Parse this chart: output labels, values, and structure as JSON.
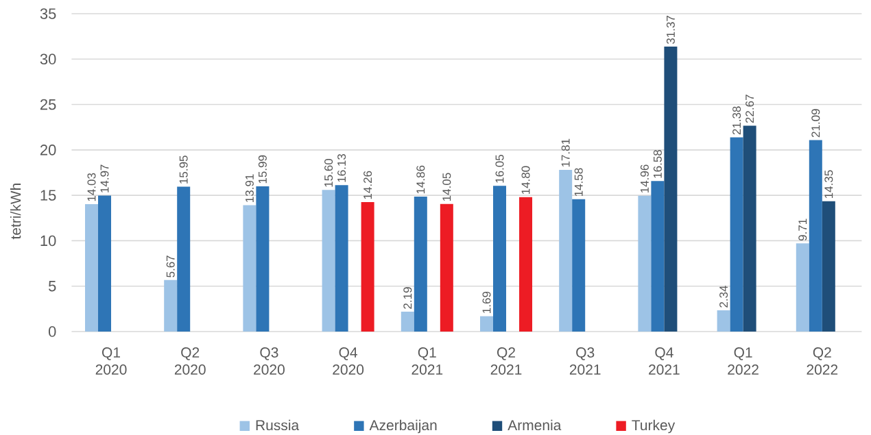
{
  "chart_data": {
    "type": "bar",
    "ylabel": "tetri/kWh",
    "categories": [
      "Q1 2020",
      "Q2 2020",
      "Q3 2020",
      "Q4 2020",
      "Q1 2021",
      "Q2 2021",
      "Q3 2021",
      "Q4 2021",
      "Q1 2022",
      "Q2 2022"
    ],
    "series": [
      {
        "name": "Russia",
        "color": "#9dc3e6",
        "values": [
          14.03,
          5.67,
          13.91,
          15.6,
          2.19,
          1.69,
          17.81,
          14.96,
          2.34,
          9.71
        ],
        "value_labels": [
          "14.03",
          "5.67",
          "13.91",
          "15.60",
          "2.19",
          "1.69",
          "17.81",
          "14.96",
          "2.34",
          "9.71"
        ]
      },
      {
        "name": "Azerbaijan",
        "color": "#2e75b6",
        "values": [
          14.97,
          15.95,
          15.99,
          16.13,
          14.86,
          16.05,
          14.58,
          16.58,
          21.38,
          21.09
        ],
        "value_labels": [
          "14.97",
          "15.95",
          "15.99",
          "16.13",
          "14.86",
          "16.05",
          "14.58",
          "16.58",
          "21.38",
          "21.09"
        ]
      },
      {
        "name": "Armenia",
        "color": "#1f4e79",
        "values": [
          null,
          null,
          null,
          null,
          null,
          null,
          null,
          31.37,
          22.67,
          14.35
        ],
        "value_labels": [
          null,
          null,
          null,
          null,
          null,
          null,
          null,
          "31.37",
          "22.67",
          "14.35"
        ]
      },
      {
        "name": "Turkey",
        "color": "#ed1c24",
        "values": [
          null,
          null,
          null,
          14.26,
          14.05,
          14.8,
          null,
          null,
          null,
          null
        ],
        "value_labels": [
          null,
          null,
          null,
          "14.26",
          "14.05",
          "14.80",
          null,
          null,
          null,
          null
        ]
      }
    ],
    "ylim": [
      0,
      35
    ],
    "yticks": [
      0,
      5,
      10,
      15,
      20,
      25,
      30,
      35
    ],
    "grid": "y",
    "legend": "bottom"
  }
}
